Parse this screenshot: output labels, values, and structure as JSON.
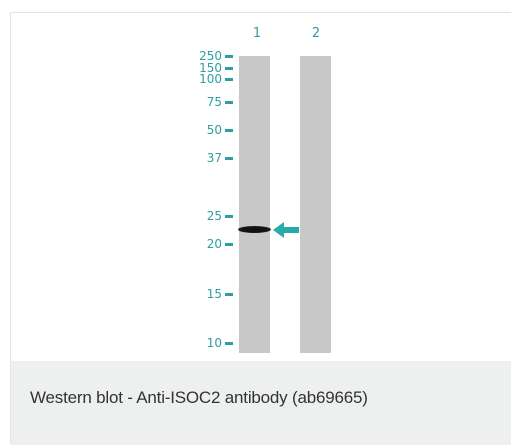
{
  "blot": {
    "lanes": [
      {
        "label": "1"
      },
      {
        "label": "2"
      }
    ],
    "markers": [
      "250",
      "150",
      "100",
      "75",
      "50",
      "37",
      "25",
      "20",
      "15",
      "10"
    ],
    "band_lane": "1",
    "accent_color": "#2e9ea0",
    "icons": {
      "arrow": "arrow-left-icon"
    }
  },
  "caption": "Western blot - Anti-ISOC2 antibody (ab69665)"
}
